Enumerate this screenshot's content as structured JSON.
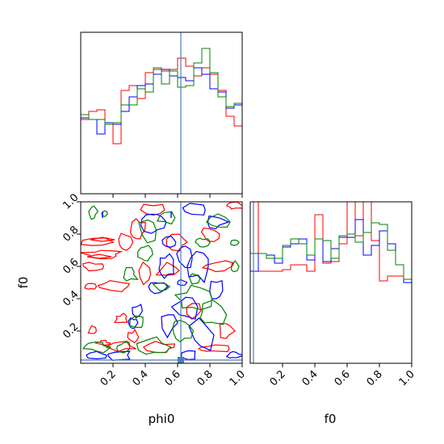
{
  "chart_data": [
    {
      "type": "histogram",
      "panel": "phi0-marginal",
      "bin_edges": [
        0,
        0.05,
        0.1,
        0.15,
        0.2,
        0.25,
        0.3,
        0.35,
        0.4,
        0.45,
        0.5,
        0.55,
        0.6,
        0.65,
        0.7,
        0.75,
        0.8,
        0.85,
        0.9,
        0.95,
        1.0
      ],
      "xlim": [
        0,
        1
      ],
      "ylim": [
        0,
        1
      ],
      "truth": 0.62,
      "series": [
        {
          "color": "#ff0000",
          "values": [
            0.46,
            0.51,
            0.52,
            0.43,
            0.31,
            0.64,
            0.67,
            0.59,
            0.75,
            0.77,
            0.76,
            0.77,
            0.84,
            0.79,
            0.73,
            0.78,
            0.74,
            0.64,
            0.48,
            0.42
          ]
        },
        {
          "color": "#0000ff",
          "values": [
            0.47,
            0.46,
            0.37,
            0.44,
            0.43,
            0.51,
            0.6,
            0.67,
            0.68,
            0.74,
            0.77,
            0.73,
            0.72,
            0.7,
            0.78,
            0.74,
            0.65,
            0.63,
            0.53,
            0.55
          ]
        },
        {
          "color": "#008000",
          "values": [
            0.49,
            0.46,
            0.46,
            0.43,
            0.44,
            0.55,
            0.55,
            0.65,
            0.63,
            0.78,
            0.68,
            0.76,
            0.66,
            0.67,
            0.81,
            0.9,
            0.75,
            0.6,
            0.54,
            0.56
          ]
        }
      ]
    },
    {
      "type": "contour",
      "panel": "phi0-f0-joint",
      "xlim": [
        0,
        1
      ],
      "ylim": [
        0,
        1
      ],
      "truth": [
        0.62,
        0.02
      ],
      "series": [
        {
          "color": "#ff0000"
        },
        {
          "color": "#0000ff"
        },
        {
          "color": "#008000"
        }
      ]
    },
    {
      "type": "histogram",
      "panel": "f0-marginal",
      "bin_edges": [
        0,
        0.05,
        0.1,
        0.15,
        0.2,
        0.25,
        0.3,
        0.35,
        0.4,
        0.45,
        0.5,
        0.55,
        0.6,
        0.65,
        0.7,
        0.75,
        0.8,
        0.85,
        0.9,
        0.95,
        1.0
      ],
      "xlim": [
        0,
        1
      ],
      "ylim": [
        0,
        1
      ],
      "truth": 0.02,
      "series": [
        {
          "color": "#ff0000",
          "values": [
            1.0,
            0.57,
            0.57,
            0.57,
            0.58,
            0.61,
            0.61,
            0.57,
            0.92,
            0.62,
            0.63,
            0.74,
            1.0,
            0.79,
            1.0,
            0.76,
            0.51,
            0.54,
            0.54,
            0.5
          ]
        },
        {
          "color": "#0000ff",
          "values": [
            0.57,
            0.68,
            0.67,
            0.62,
            0.72,
            0.74,
            0.77,
            0.64,
            0.77,
            0.63,
            0.71,
            0.78,
            0.78,
            0.89,
            0.67,
            0.73,
            0.82,
            0.74,
            0.61,
            0.5
          ]
        },
        {
          "color": "#008000",
          "values": [
            0.68,
            0.68,
            0.65,
            0.65,
            0.73,
            0.77,
            0.74,
            0.67,
            0.77,
            0.76,
            0.65,
            0.79,
            0.8,
            0.75,
            0.81,
            0.87,
            0.86,
            0.7,
            0.61,
            0.52
          ]
        }
      ]
    }
  ],
  "axes": {
    "xlabel_left": "phi0",
    "xlabel_right": "f0",
    "ylabel_joint": "f0",
    "ticks": [
      {
        "value": 0.2,
        "label": "0.2"
      },
      {
        "value": 0.4,
        "label": "0.4"
      },
      {
        "value": 0.6,
        "label": "0.6"
      },
      {
        "value": 0.8,
        "label": "0.8"
      },
      {
        "value": 1.0,
        "label": "1.0"
      }
    ]
  },
  "colors": {
    "truth": "#4c7fb8",
    "frame": "#000000"
  }
}
